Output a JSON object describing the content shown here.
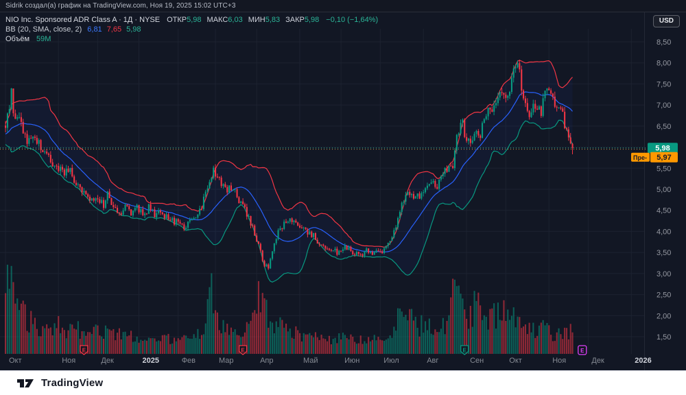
{
  "attribution": {
    "text": "Sidrik создал(а) график на TradingView.com, Ноя 19, 2025 15:02 UTC+3"
  },
  "legend": {
    "title": "NIO Inc. Sponsored ADR Class A · 1Д · NYSE",
    "ohlc": [
      {
        "label": "ОТКР",
        "value": "5,98"
      },
      {
        "label": "МАКС",
        "value": "6,03"
      },
      {
        "label": "МИН",
        "value": "5,83"
      },
      {
        "label": "ЗАКР",
        "value": "5,98"
      }
    ],
    "change": "−0,10 (−1,64%)",
    "bb": {
      "title": "BB (20, SMA, close, 2)",
      "basis": "6,81",
      "upper": "7,65",
      "lower": "5,98"
    },
    "volume": {
      "label": "Объём",
      "value": "59М"
    }
  },
  "axis": {
    "currency": "USD",
    "last_price_label": "5,98",
    "premarket_prefix": "Пре-",
    "premarket_price_label": "5,97"
  },
  "footer": {
    "brand": "TradingView"
  },
  "colors": {
    "up": "#089981",
    "down": "#f23645",
    "bb_basis": "#2962ff",
    "bb_upper": "#f23645",
    "bb_lower": "#089981",
    "bb_fill": "rgba(41,98,255,0.055)",
    "grid": "#1c2230",
    "axis_text": "#9598a1",
    "month_text": "#868b94",
    "year_text": "#d1d4dc",
    "close_badge": "#089981",
    "premarket_badge": "#ff9800",
    "premarket_line": "#c98a3d",
    "close_line": "#2bb598",
    "earn_past_red": "#f23645",
    "earn_past_teal": "#089981",
    "earn_future": "#e040fb"
  },
  "chart_data": {
    "type": "candlestick",
    "symbol": "NIO Inc. Sponsored ADR Class A",
    "interval": "1Д",
    "exchange": "NYSE",
    "currency": "USD",
    "ohlc_today": {
      "open": 5.98,
      "high": 6.03,
      "low": 5.83,
      "close": 5.98,
      "change": -0.1,
      "change_pct": -1.64
    },
    "bollinger": {
      "length": 20,
      "source": "close",
      "mult": 2,
      "basis": 6.81,
      "upper": 7.65,
      "lower": 5.98
    },
    "volume_today_m": 59,
    "premarket_price": 5.97,
    "last_close": 5.98,
    "y_range": [
      1.25,
      8.75
    ],
    "price_ticks": [
      {
        "value": 8.5,
        "label": "8,50"
      },
      {
        "value": 8.0,
        "label": "8,00"
      },
      {
        "value": 7.5,
        "label": "7,50"
      },
      {
        "value": 7.0,
        "label": "7,00"
      },
      {
        "value": 6.5,
        "label": "6,50"
      },
      {
        "value": 6.0,
        "label": "6,00",
        "hidden": true
      },
      {
        "value": 5.5,
        "label": "5,50"
      },
      {
        "value": 5.0,
        "label": "5,00"
      },
      {
        "value": 4.5,
        "label": "4,50"
      },
      {
        "value": 4.0,
        "label": "4,00"
      },
      {
        "value": 3.5,
        "label": "3,50"
      },
      {
        "value": 3.0,
        "label": "3,00"
      },
      {
        "value": 2.5,
        "label": "2,50"
      },
      {
        "value": 2.0,
        "label": "2,00"
      },
      {
        "value": 1.5,
        "label": "1,50"
      }
    ],
    "months": [
      {
        "label": "Окт",
        "day": 0,
        "year": false
      },
      {
        "label": "Ноя",
        "day": 27,
        "year": false
      },
      {
        "label": "Дек",
        "day": 47,
        "year": false
      },
      {
        "label": "2025",
        "day": 68,
        "year": true
      },
      {
        "label": "Фев",
        "day": 88,
        "year": false
      },
      {
        "label": "Мар",
        "day": 107,
        "year": false
      },
      {
        "label": "Апр",
        "day": 128,
        "year": false
      },
      {
        "label": "Май",
        "day": 150,
        "year": false
      },
      {
        "label": "Июн",
        "day": 171,
        "year": false
      },
      {
        "label": "Июл",
        "day": 191,
        "year": false
      },
      {
        "label": "Авг",
        "day": 213,
        "year": false
      },
      {
        "label": "Сен",
        "day": 235,
        "year": false
      },
      {
        "label": "Окт",
        "day": 255,
        "year": false
      },
      {
        "label": "Ноя",
        "day": 277,
        "year": false
      },
      {
        "label": "Дек",
        "day": 297,
        "year": false
      },
      {
        "label": "2026",
        "day": 319,
        "year": true
      }
    ],
    "earnings_markers": [
      {
        "day": 40,
        "style": "shield",
        "color": "#f23645"
      },
      {
        "day": 121,
        "style": "shield",
        "color": "#f23645"
      },
      {
        "day": 234,
        "style": "shield",
        "color": "#089981"
      },
      {
        "day": 294,
        "style": "square",
        "color": "#e040fb"
      }
    ],
    "close_anchors": [
      [
        -20,
        6.1
      ],
      [
        -10,
        6.3
      ],
      [
        0,
        6.45
      ],
      [
        2,
        6.9
      ],
      [
        3,
        7.35
      ],
      [
        4,
        6.7
      ],
      [
        6,
        6.8
      ],
      [
        9,
        6.4
      ],
      [
        12,
        6.1
      ],
      [
        15,
        6.3
      ],
      [
        18,
        6.0
      ],
      [
        21,
        5.8
      ],
      [
        24,
        5.62
      ],
      [
        27,
        5.5
      ],
      [
        30,
        5.35
      ],
      [
        33,
        5.45
      ],
      [
        36,
        5.1
      ],
      [
        39,
        4.9
      ],
      [
        42,
        4.78
      ],
      [
        45,
        4.72
      ],
      [
        47,
        4.85
      ],
      [
        50,
        4.6
      ],
      [
        52,
        4.88
      ],
      [
        55,
        4.5
      ],
      [
        58,
        4.42
      ],
      [
        61,
        4.55
      ],
      [
        64,
        4.45
      ],
      [
        67,
        4.55
      ],
      [
        70,
        4.42
      ],
      [
        73,
        4.55
      ],
      [
        76,
        4.38
      ],
      [
        79,
        4.5
      ],
      [
        82,
        4.35
      ],
      [
        85,
        4.27
      ],
      [
        88,
        4.18
      ],
      [
        91,
        4.08
      ],
      [
        94,
        4.2
      ],
      [
        97,
        4.4
      ],
      [
        100,
        4.62
      ],
      [
        103,
        5.1
      ],
      [
        106,
        5.45
      ],
      [
        109,
        5.18
      ],
      [
        112,
        4.95
      ],
      [
        115,
        5.05
      ],
      [
        118,
        4.85
      ],
      [
        121,
        4.62
      ],
      [
        124,
        4.32
      ],
      [
        127,
        3.95
      ],
      [
        130,
        3.5
      ],
      [
        132,
        3.22
      ],
      [
        134,
        3.18
      ],
      [
        136,
        3.6
      ],
      [
        139,
        3.95
      ],
      [
        142,
        4.15
      ],
      [
        145,
        4.28
      ],
      [
        148,
        4.15
      ],
      [
        151,
        4.05
      ],
      [
        154,
        3.95
      ],
      [
        157,
        3.88
      ],
      [
        160,
        3.72
      ],
      [
        163,
        3.6
      ],
      [
        166,
        3.56
      ],
      [
        169,
        3.5
      ],
      [
        172,
        3.62
      ],
      [
        175,
        3.56
      ],
      [
        178,
        3.46
      ],
      [
        181,
        3.42
      ],
      [
        184,
        3.56
      ],
      [
        187,
        3.5
      ],
      [
        190,
        3.46
      ],
      [
        193,
        3.56
      ],
      [
        196,
        3.72
      ],
      [
        199,
        4.1
      ],
      [
        202,
        4.65
      ],
      [
        205,
        4.95
      ],
      [
        208,
        4.75
      ],
      [
        211,
        4.85
      ],
      [
        214,
        5.1
      ],
      [
        217,
        5.25
      ],
      [
        220,
        5.05
      ],
      [
        223,
        5.35
      ],
      [
        226,
        5.5
      ],
      [
        228,
        5.62
      ],
      [
        230,
        6.3
      ],
      [
        233,
        6.52
      ],
      [
        235,
        6.15
      ],
      [
        237,
        6.0
      ],
      [
        239,
        6.4
      ],
      [
        241,
        6.2
      ],
      [
        243,
        6.5
      ],
      [
        246,
        6.85
      ],
      [
        248,
        6.7
      ],
      [
        251,
        7.15
      ],
      [
        254,
        7.35
      ],
      [
        256,
        7.2
      ],
      [
        259,
        7.75
      ],
      [
        261,
        7.9
      ],
      [
        263,
        7.5
      ],
      [
        265,
        7.1
      ],
      [
        267,
        6.72
      ],
      [
        269,
        6.9
      ],
      [
        271,
        7.0
      ],
      [
        273,
        6.82
      ],
      [
        276,
        7.45
      ],
      [
        278,
        7.2
      ],
      [
        280,
        7.1
      ],
      [
        282,
        6.9
      ],
      [
        284,
        6.7
      ],
      [
        286,
        6.42
      ],
      [
        288,
        6.1
      ],
      [
        289,
        5.98
      ]
    ],
    "volume_anchors_m": [
      [
        -20,
        120
      ],
      [
        0,
        160
      ],
      [
        1,
        200
      ],
      [
        2,
        210
      ],
      [
        3,
        180
      ],
      [
        5,
        150
      ],
      [
        8,
        110
      ],
      [
        12,
        90
      ],
      [
        16,
        75
      ],
      [
        20,
        65
      ],
      [
        24,
        62
      ],
      [
        27,
        75
      ],
      [
        32,
        60
      ],
      [
        36,
        70
      ],
      [
        40,
        55
      ],
      [
        44,
        50
      ],
      [
        47,
        65
      ],
      [
        50,
        55
      ],
      [
        53,
        70
      ],
      [
        57,
        60
      ],
      [
        61,
        50
      ],
      [
        64,
        55
      ],
      [
        68,
        46
      ],
      [
        72,
        42
      ],
      [
        76,
        40
      ],
      [
        80,
        44
      ],
      [
        84,
        42
      ],
      [
        88,
        40
      ],
      [
        92,
        38
      ],
      [
        96,
        45
      ],
      [
        100,
        60
      ],
      [
        103,
        140
      ],
      [
        105,
        160
      ],
      [
        107,
        120
      ],
      [
        109,
        80
      ],
      [
        112,
        65
      ],
      [
        115,
        58
      ],
      [
        118,
        52
      ],
      [
        121,
        56
      ],
      [
        124,
        66
      ],
      [
        127,
        95
      ],
      [
        129,
        170
      ],
      [
        131,
        120
      ],
      [
        134,
        100
      ],
      [
        137,
        85
      ],
      [
        140,
        72
      ],
      [
        143,
        64
      ],
      [
        147,
        58
      ],
      [
        151,
        54
      ],
      [
        155,
        50
      ],
      [
        159,
        47
      ],
      [
        163,
        44
      ],
      [
        167,
        42
      ],
      [
        170,
        48
      ],
      [
        174,
        44
      ],
      [
        178,
        40
      ],
      [
        182,
        38
      ],
      [
        186,
        42
      ],
      [
        190,
        40
      ],
      [
        193,
        46
      ],
      [
        196,
        56
      ],
      [
        199,
        92
      ],
      [
        202,
        120
      ],
      [
        205,
        108
      ],
      [
        208,
        84
      ],
      [
        211,
        76
      ],
      [
        214,
        86
      ],
      [
        217,
        76
      ],
      [
        220,
        66
      ],
      [
        223,
        80
      ],
      [
        226,
        96
      ],
      [
        228,
        230
      ],
      [
        230,
        150
      ],
      [
        233,
        120
      ],
      [
        235,
        100
      ],
      [
        238,
        112
      ],
      [
        240,
        225
      ],
      [
        242,
        110
      ],
      [
        245,
        98
      ],
      [
        248,
        104
      ],
      [
        251,
        112
      ],
      [
        254,
        106
      ],
      [
        257,
        96
      ],
      [
        260,
        102
      ],
      [
        263,
        86
      ],
      [
        266,
        76
      ],
      [
        269,
        66
      ],
      [
        272,
        60
      ],
      [
        275,
        70
      ],
      [
        278,
        56
      ],
      [
        281,
        50
      ],
      [
        284,
        60
      ],
      [
        287,
        66
      ],
      [
        289,
        59
      ]
    ]
  }
}
